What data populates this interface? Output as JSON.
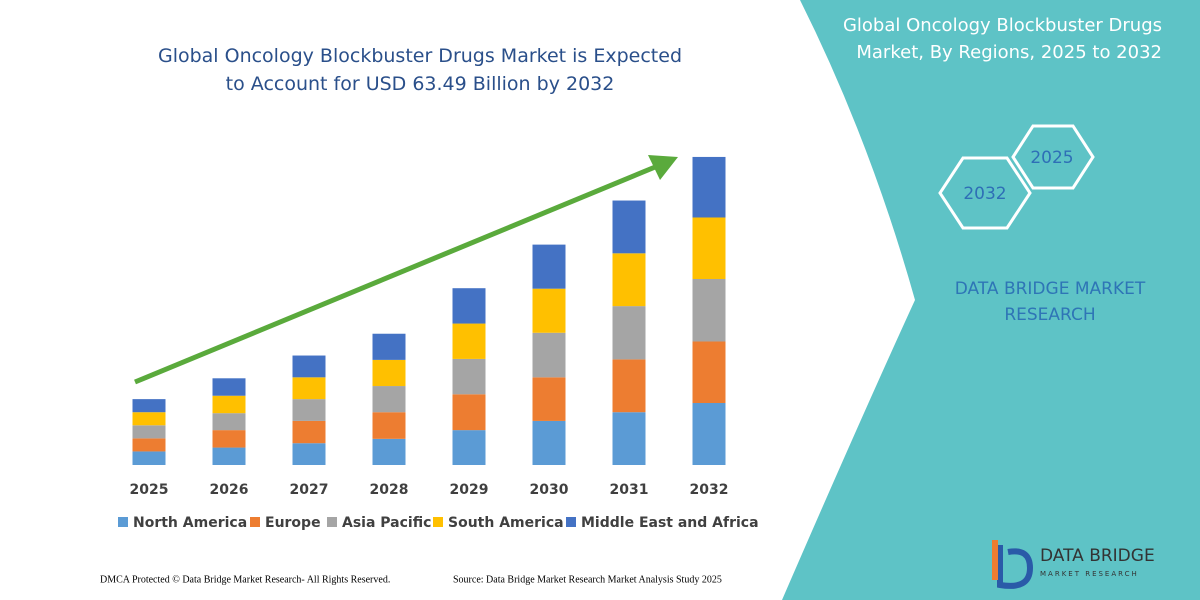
{
  "chart_data": {
    "type": "stacked_bar",
    "title": "Global Oncology Blockbuster Drugs Market is Expected to Account for USD 63.49 Billion by 2032",
    "categories": [
      "2025",
      "2026",
      "2027",
      "2028",
      "2029",
      "2030",
      "2031",
      "2032"
    ],
    "series": [
      {
        "name": "North America",
        "color": "#5b9bd5",
        "values": [
          2.8,
          3.6,
          4.5,
          5.4,
          7.2,
          9.1,
          10.9,
          12.8
        ]
      },
      {
        "name": "Europe",
        "color": "#ed7d31",
        "values": [
          2.7,
          3.6,
          4.6,
          5.5,
          7.4,
          9.0,
          10.9,
          12.7
        ]
      },
      {
        "name": "Asia Pacific",
        "color": "#a5a5a5",
        "values": [
          2.7,
          3.5,
          4.5,
          5.4,
          7.3,
          9.2,
          11.0,
          12.9
        ]
      },
      {
        "name": "South America",
        "color": "#ffc000",
        "values": [
          2.7,
          3.6,
          4.5,
          5.4,
          7.3,
          9.1,
          10.9,
          12.7
        ]
      },
      {
        "name": "Middle East and Africa",
        "color": "#4472c4",
        "values": [
          2.7,
          3.6,
          4.5,
          5.4,
          7.3,
          9.1,
          10.9,
          12.5
        ]
      }
    ],
    "ylim": [
      0,
      64
    ],
    "grid": false,
    "legend": "bottom"
  },
  "side_panel": {
    "title": "Global Oncology Blockbuster Drugs Market, By Regions, 2025 to 2032",
    "hexagons": [
      "2025",
      "2032"
    ],
    "brand": "DATA BRIDGE MARKET RESEARCH"
  },
  "logo": {
    "name": "DATA BRIDGE",
    "tagline": "MARKET RESEARCH"
  },
  "footer": {
    "dmca": "DMCA Protected © Data Bridge Market Research-  All Rights Reserved.",
    "source": "Source: Data Bridge Market Research  Market Analysis Study 2025"
  }
}
